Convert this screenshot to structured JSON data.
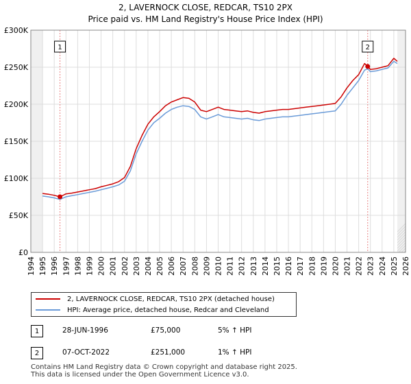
{
  "title_line1": "2, LAVERNOCK CLOSE, REDCAR, TS10 2PX",
  "title_line2": "Price paid vs. HM Land Registry's House Price Index (HPI)",
  "legend": {
    "property_label": "2, LAVERNOCK CLOSE, REDCAR, TS10 2PX (detached house)",
    "hpi_label": "HPI: Average price, detached house, Redcar and Cleveland"
  },
  "transactions": [
    {
      "number": "1",
      "date": "28-JUN-1996",
      "price": "£75,000",
      "hpi_change": "5% ↑ HPI"
    },
    {
      "number": "2",
      "date": "07-OCT-2022",
      "price": "£251,000",
      "hpi_change": "1% ↑ HPI"
    }
  ],
  "footer_line1": "Contains HM Land Registry data © Crown copyright and database right 2025.",
  "footer_line2": "This data is licensed under the Open Government Licence v3.0.",
  "colors": {
    "property": "#cc0000",
    "hpi": "#6a9bd8",
    "grid": "#dddddd",
    "marker": "#e88080"
  },
  "chart_data": {
    "type": "line",
    "title": "2, LAVERNOCK CLOSE, REDCAR, TS10 2PX",
    "subtitle": "Price paid vs. HM Land Registry's House Price Index (HPI)",
    "xlabel": "",
    "ylabel": "",
    "xlim": [
      1994,
      2026
    ],
    "ylim": [
      0,
      300000
    ],
    "x_ticks": [
      1994,
      1995,
      1996,
      1997,
      1998,
      1999,
      2000,
      2001,
      2002,
      2003,
      2004,
      2005,
      2006,
      2007,
      2008,
      2009,
      2010,
      2011,
      2012,
      2013,
      2014,
      2015,
      2016,
      2017,
      2018,
      2019,
      2020,
      2021,
      2022,
      2023,
      2024,
      2025,
      2026
    ],
    "y_ticks": [
      0,
      50000,
      100000,
      150000,
      200000,
      250000,
      300000
    ],
    "y_tick_labels": [
      "£0",
      "£50K",
      "£100K",
      "£150K",
      "£200K",
      "£250K",
      "£300K"
    ],
    "data_range_x": [
      1995.0,
      2025.3
    ],
    "series": [
      {
        "name": "2, LAVERNOCK CLOSE, REDCAR, TS10 2PX (detached house)",
        "x": [
          1995.0,
          1995.5,
          1996.0,
          1996.49,
          1997.0,
          1997.5,
          1998.0,
          1998.5,
          1999.0,
          1999.5,
          2000.0,
          2000.5,
          2001.0,
          2001.5,
          2002.0,
          2002.5,
          2003.0,
          2003.5,
          2004.0,
          2004.5,
          2005.0,
          2005.5,
          2006.0,
          2006.5,
          2007.0,
          2007.5,
          2008.0,
          2008.5,
          2009.0,
          2009.5,
          2010.0,
          2010.5,
          2011.0,
          2011.5,
          2012.0,
          2012.5,
          2013.0,
          2013.5,
          2014.0,
          2014.5,
          2015.0,
          2015.5,
          2016.0,
          2016.5,
          2017.0,
          2017.5,
          2018.0,
          2018.5,
          2019.0,
          2019.5,
          2020.0,
          2020.5,
          2021.0,
          2021.5,
          2022.0,
          2022.5,
          2022.77,
          2023.0,
          2023.5,
          2024.0,
          2024.5,
          2025.0,
          2025.3
        ],
        "y": [
          79500,
          78500,
          77000,
          75000,
          79000,
          80000,
          81500,
          83000,
          84500,
          86000,
          88500,
          90500,
          92500,
          95500,
          101000,
          116000,
          140000,
          158000,
          173000,
          183000,
          190000,
          198000,
          203000,
          206000,
          209000,
          208000,
          203000,
          192000,
          190000,
          193000,
          196000,
          193000,
          192000,
          191000,
          190000,
          191000,
          189000,
          188000,
          190000,
          191000,
          192000,
          193000,
          193000,
          194000,
          195000,
          196000,
          197000,
          198000,
          199000,
          200000,
          201000,
          210000,
          222000,
          232000,
          240000,
          255000,
          251000,
          247000,
          248000,
          250000,
          252000,
          262000,
          258000
        ]
      },
      {
        "name": "HPI: Average price, detached house, Redcar and Cleveland",
        "x": [
          1995.0,
          1995.5,
          1996.0,
          1996.49,
          1997.0,
          1997.5,
          1998.0,
          1998.5,
          1999.0,
          1999.5,
          2000.0,
          2000.5,
          2001.0,
          2001.5,
          2002.0,
          2002.5,
          2003.0,
          2003.5,
          2004.0,
          2004.5,
          2005.0,
          2005.5,
          2006.0,
          2006.5,
          2007.0,
          2007.5,
          2008.0,
          2008.5,
          2009.0,
          2009.5,
          2010.0,
          2010.5,
          2011.0,
          2011.5,
          2012.0,
          2012.5,
          2013.0,
          2013.5,
          2014.0,
          2014.5,
          2015.0,
          2015.5,
          2016.0,
          2016.5,
          2017.0,
          2017.5,
          2018.0,
          2018.5,
          2019.0,
          2019.5,
          2020.0,
          2020.5,
          2021.0,
          2021.5,
          2022.0,
          2022.5,
          2022.77,
          2023.0,
          2023.5,
          2024.0,
          2024.5,
          2025.0,
          2025.3
        ],
        "y": [
          76000,
          75000,
          73500,
          71500,
          75000,
          76500,
          78000,
          79500,
          81000,
          82500,
          84500,
          86500,
          88500,
          91000,
          96000,
          110000,
          133000,
          150000,
          165000,
          175000,
          181000,
          188000,
          193000,
          196000,
          198000,
          197000,
          193000,
          183000,
          180000,
          183000,
          186000,
          183000,
          182000,
          181000,
          180000,
          181000,
          179000,
          178000,
          180000,
          181000,
          182000,
          183000,
          183000,
          184000,
          185000,
          186000,
          187000,
          188000,
          189000,
          190000,
          191000,
          200000,
          212000,
          222000,
          232000,
          246000,
          248000,
          244000,
          245000,
          247000,
          249000,
          258000,
          255000
        ]
      }
    ],
    "annotations": [
      {
        "label": "1",
        "x": 1996.49,
        "y": 75000
      },
      {
        "label": "2",
        "x": 2022.77,
        "y": 251000
      }
    ]
  }
}
